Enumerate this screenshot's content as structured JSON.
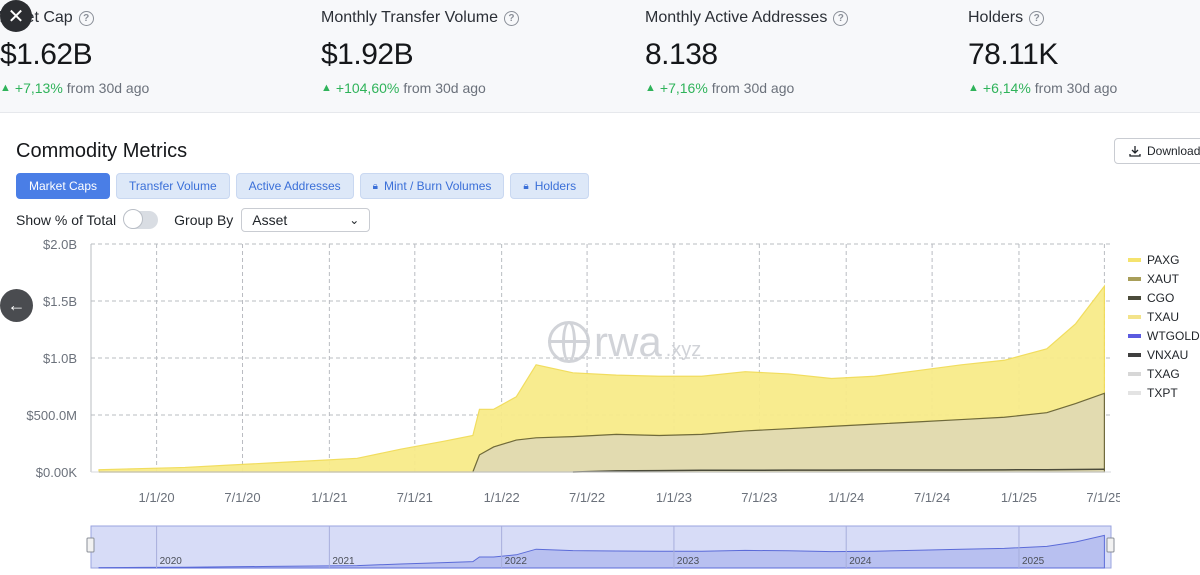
{
  "stats": [
    {
      "title": "Market Cap",
      "value": "$1.62B",
      "change": "+7,13%",
      "suffix": "from 30d ago"
    },
    {
      "title": "Monthly Transfer Volume",
      "value": "$1.92B",
      "change": "+104,60%",
      "suffix": "from 30d ago"
    },
    {
      "title": "Monthly Active Addresses",
      "value": "8.138",
      "change": "+7,16%",
      "suffix": "from 30d ago"
    },
    {
      "title": "Holders",
      "value": "78.11K",
      "change": "+6,14%",
      "suffix": "from 30d ago"
    }
  ],
  "close_glyph": "✕",
  "back_glyph": "←",
  "section_title": "Commodity Metrics",
  "download_label": "Download",
  "tabs": [
    {
      "label": "Market Caps",
      "locked": false,
      "active": true
    },
    {
      "label": "Transfer Volume",
      "locked": false,
      "active": false
    },
    {
      "label": "Active Addresses",
      "locked": false,
      "active": false
    },
    {
      "label": "Mint / Burn Volumes",
      "locked": true,
      "active": false
    },
    {
      "label": "Holders",
      "locked": true,
      "active": false
    }
  ],
  "controls": {
    "show_pct_label": "Show % of Total",
    "group_by_label": "Group By",
    "group_by_value": "Asset"
  },
  "watermark": {
    "main": "rwa",
    "tld": ".xyz"
  },
  "colors": {
    "PAXG": "#f5e36e",
    "XAUT": "#a89e59",
    "CGO": "#4b4b3a",
    "TXAU": "#f3e38a",
    "WTGOLD": "#5b5be0",
    "VNXAU": "#3f3f3f",
    "TXAG": "#d7d7d7",
    "TXPT": "#e3e3e3",
    "accent": "#4a7ee6",
    "positive": "#2fb35a"
  },
  "chart_data": {
    "type": "area",
    "stacked": true,
    "y_ticks": [
      "$0.00K",
      "$500.0M",
      "$1.0B",
      "$1.5B",
      "$2.0B"
    ],
    "ylim": [
      0,
      2000000000
    ],
    "x_ticks": [
      "1/1/20",
      "7/1/20",
      "1/1/21",
      "7/1/21",
      "1/1/22",
      "7/1/22",
      "1/1/23",
      "7/1/23",
      "1/1/24",
      "7/1/24",
      "1/1/25",
      "7/1/25"
    ],
    "x_range": [
      "2019-08-15",
      "2025-07-15"
    ],
    "legend": [
      "PAXG",
      "XAUT",
      "CGO",
      "TXAU",
      "WTGOLD",
      "VNXAU",
      "TXAG",
      "TXPT"
    ],
    "legend_position": "right",
    "grid": true,
    "navigator_labels": [
      "2020",
      "2021",
      "2022",
      "2023",
      "2024",
      "2025"
    ],
    "x": [
      "2019-09-01",
      "2019-12-01",
      "2020-03-01",
      "2020-06-01",
      "2020-09-01",
      "2020-12-01",
      "2021-03-01",
      "2021-06-01",
      "2021-09-01",
      "2021-11-01",
      "2021-11-15",
      "2021-12-15",
      "2022-02-01",
      "2022-03-15",
      "2022-06-01",
      "2022-09-01",
      "2022-12-01",
      "2023-03-01",
      "2023-06-01",
      "2023-09-01",
      "2023-12-01",
      "2024-03-01",
      "2024-06-01",
      "2024-09-01",
      "2024-12-01",
      "2025-03-01",
      "2025-05-01",
      "2025-07-01"
    ],
    "series": [
      {
        "name": "XAUT",
        "values": [
          0,
          0,
          0,
          0,
          0,
          0,
          0,
          0,
          0,
          0,
          150000000,
          220000000,
          280000000,
          300000000,
          310000000,
          330000000,
          320000000,
          330000000,
          360000000,
          380000000,
          400000000,
          420000000,
          440000000,
          460000000,
          480000000,
          520000000,
          600000000,
          690000000
        ]
      },
      {
        "name": "PAXG",
        "values": [
          20000000,
          30000000,
          40000000,
          60000000,
          80000000,
          100000000,
          120000000,
          200000000,
          270000000,
          320000000,
          400000000,
          330000000,
          380000000,
          640000000,
          560000000,
          520000000,
          520000000,
          510000000,
          520000000,
          480000000,
          420000000,
          420000000,
          450000000,
          480000000,
          500000000,
          560000000,
          700000000,
          940000000
        ]
      },
      {
        "name": "CGO",
        "values": [
          0,
          0,
          0,
          0,
          0,
          0,
          0,
          0,
          0,
          0,
          0,
          0,
          0,
          0,
          0,
          10000000,
          12000000,
          15000000,
          15000000,
          16000000,
          16000000,
          17000000,
          18000000,
          18000000,
          19000000,
          20000000,
          22000000,
          24000000
        ]
      }
    ]
  }
}
